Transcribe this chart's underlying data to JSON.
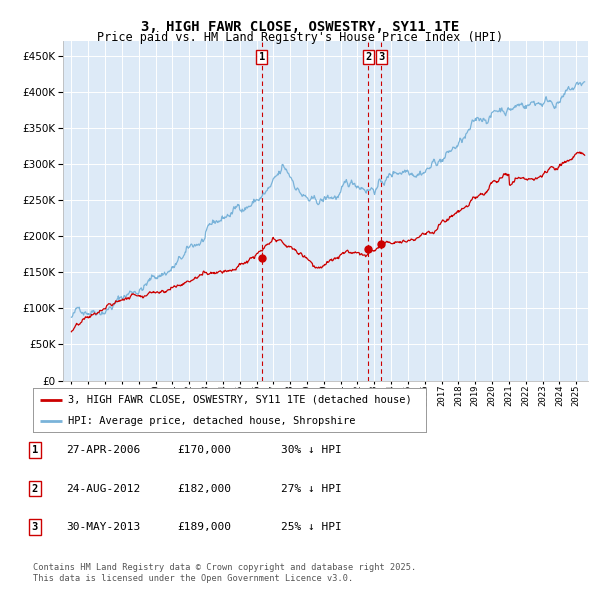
{
  "title": "3, HIGH FAWR CLOSE, OSWESTRY, SY11 1TE",
  "subtitle": "Price paid vs. HM Land Registry's House Price Index (HPI)",
  "ytick_values": [
    0,
    50000,
    100000,
    150000,
    200000,
    250000,
    300000,
    350000,
    400000,
    450000
  ],
  "ylim": [
    0,
    470000
  ],
  "xlim_start": 1994.5,
  "xlim_end": 2025.7,
  "bg_color": "#ddeaf7",
  "grid_color": "#ffffff",
  "hpi_color": "#7ab3d9",
  "price_color": "#cc0000",
  "vline_color": "#cc0000",
  "sale_dates": [
    2006.32,
    2012.64,
    2013.41
  ],
  "sale_prices": [
    170000,
    182000,
    189000
  ],
  "sale_labels": [
    "1",
    "2",
    "3"
  ],
  "legend_label_red": "3, HIGH FAWR CLOSE, OSWESTRY, SY11 1TE (detached house)",
  "legend_label_blue": "HPI: Average price, detached house, Shropshire",
  "table_entries": [
    {
      "num": "1",
      "date": "27-APR-2006",
      "price": "£170,000",
      "pct": "30% ↓ HPI"
    },
    {
      "num": "2",
      "date": "24-AUG-2012",
      "price": "£182,000",
      "pct": "27% ↓ HPI"
    },
    {
      "num": "3",
      "date": "30-MAY-2013",
      "price": "£189,000",
      "pct": "25% ↓ HPI"
    }
  ],
  "footnote1": "Contains HM Land Registry data © Crown copyright and database right 2025.",
  "footnote2": "This data is licensed under the Open Government Licence v3.0."
}
